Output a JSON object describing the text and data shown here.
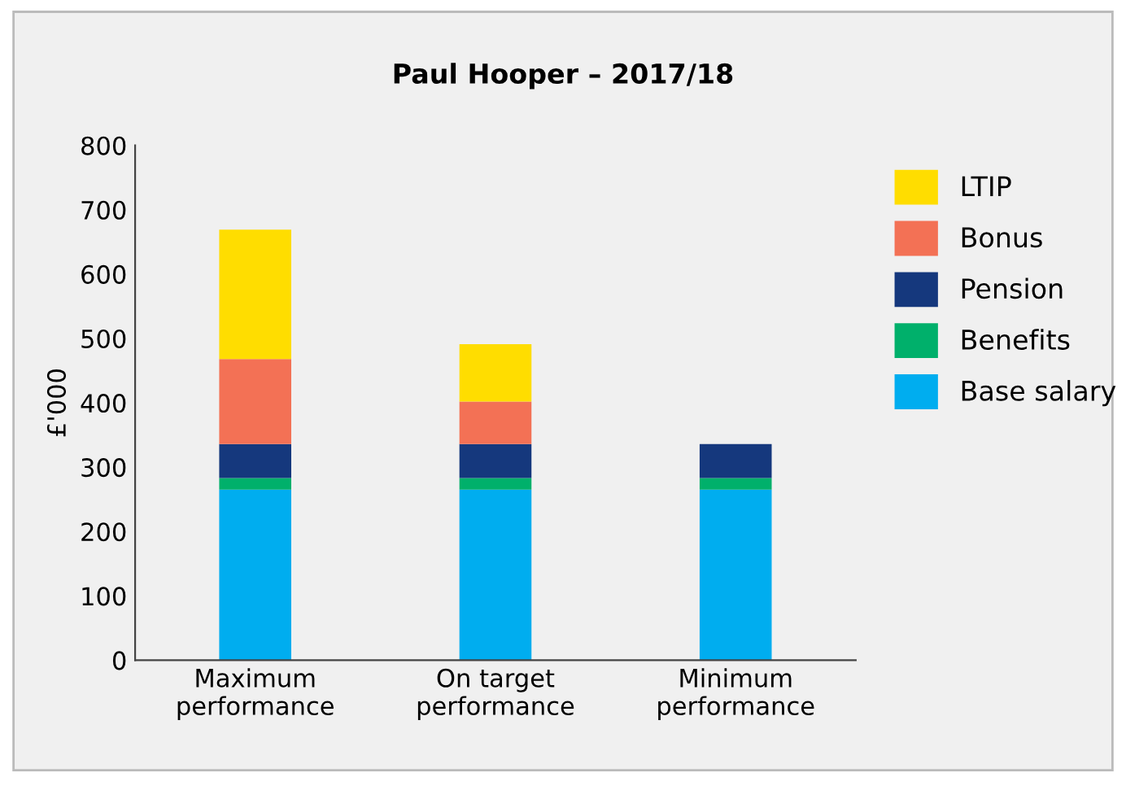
{
  "chart_data": {
    "type": "bar",
    "title": "Paul Hooper – 2017/18",
    "ylabel": "£'000",
    "categories": [
      "Maximum\nperformance",
      "On target\nperformance",
      "Minimum\nperformance"
    ],
    "stacked": true,
    "series": [
      {
        "name": "Base salary",
        "color": "#00adef",
        "values": [
          265,
          265,
          265
        ]
      },
      {
        "name": "Benefits",
        "color": "#00b06b",
        "values": [
          18,
          18,
          18
        ]
      },
      {
        "name": "Pension",
        "color": "#15387d",
        "values": [
          53,
          53,
          53
        ]
      },
      {
        "name": "Bonus",
        "color": "#f37155",
        "values": [
          132,
          66,
          0
        ]
      },
      {
        "name": "LTIP",
        "color": "#ffdd00",
        "values": [
          201,
          89,
          0
        ]
      }
    ],
    "ylim": [
      0,
      800
    ],
    "yticks": [
      0,
      100,
      200,
      300,
      400,
      500,
      600,
      700,
      800
    ],
    "grid": false,
    "legend": "top right"
  }
}
